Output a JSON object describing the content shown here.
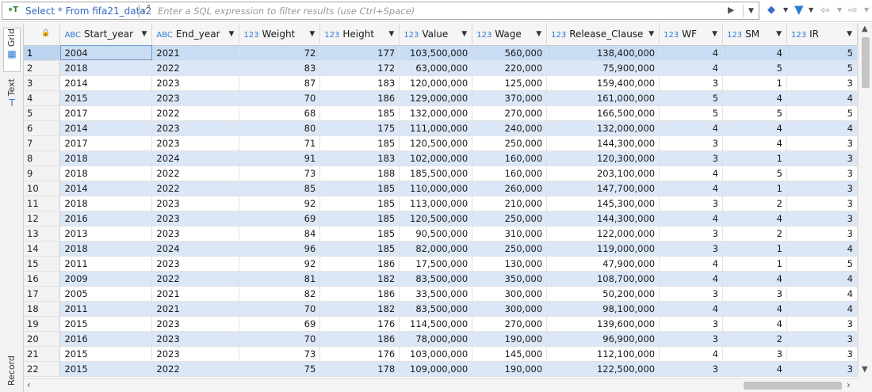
{
  "filter": {
    "query_icon": "⋄T",
    "query_label": "Select * From fifa21_data2",
    "placeholder": "Enter a SQL expression to filter results (use Ctrl+Space)"
  },
  "icons": {
    "expand": "expand-icon",
    "play": "play-icon",
    "eraser": "eraser-icon",
    "filter": "filter-icon",
    "back": "arrow-left-icon",
    "forward": "arrow-right-icon",
    "lock": "lock-icon"
  },
  "side_tabs": {
    "grid": "Grid",
    "text": "Text",
    "record": "Record"
  },
  "columns": [
    {
      "type": "ABC",
      "name": "Start_year",
      "width": 116
    },
    {
      "type": "ABC",
      "name": "End_year",
      "width": 110
    },
    {
      "type": "123",
      "name": "Weight",
      "width": 102
    },
    {
      "type": "123",
      "name": "Height",
      "width": 100
    },
    {
      "type": "123",
      "name": "Value",
      "width": 92
    },
    {
      "type": "123",
      "name": "Wage",
      "width": 94
    },
    {
      "type": "123",
      "name": "Release_Clause",
      "width": 142
    },
    {
      "type": "123",
      "name": "WF",
      "width": 80
    },
    {
      "type": "123",
      "name": "SM",
      "width": 81
    },
    {
      "type": "123",
      "name": "IR",
      "width": 89
    }
  ],
  "rows": [
    [
      "1",
      "2004",
      "2021",
      "72",
      "177",
      "103,500,000",
      "560,000",
      "138,400,000",
      "4",
      "4",
      "5"
    ],
    [
      "2",
      "2018",
      "2022",
      "83",
      "172",
      "63,000,000",
      "220,000",
      "75,900,000",
      "4",
      "5",
      "5"
    ],
    [
      "3",
      "2014",
      "2023",
      "87",
      "183",
      "120,000,000",
      "125,000",
      "159,400,000",
      "3",
      "1",
      "3"
    ],
    [
      "4",
      "2015",
      "2023",
      "70",
      "186",
      "129,000,000",
      "370,000",
      "161,000,000",
      "5",
      "4",
      "4"
    ],
    [
      "5",
      "2017",
      "2022",
      "68",
      "185",
      "132,000,000",
      "270,000",
      "166,500,000",
      "5",
      "5",
      "5"
    ],
    [
      "6",
      "2014",
      "2023",
      "80",
      "175",
      "111,000,000",
      "240,000",
      "132,000,000",
      "4",
      "4",
      "4"
    ],
    [
      "7",
      "2017",
      "2023",
      "71",
      "185",
      "120,500,000",
      "250,000",
      "144,300,000",
      "3",
      "4",
      "3"
    ],
    [
      "8",
      "2018",
      "2024",
      "91",
      "183",
      "102,000,000",
      "160,000",
      "120,300,000",
      "3",
      "1",
      "3"
    ],
    [
      "9",
      "2018",
      "2022",
      "73",
      "188",
      "185,500,000",
      "160,000",
      "203,100,000",
      "4",
      "5",
      "3"
    ],
    [
      "10",
      "2014",
      "2022",
      "85",
      "185",
      "110,000,000",
      "260,000",
      "147,700,000",
      "4",
      "1",
      "3"
    ],
    [
      "11",
      "2018",
      "2023",
      "92",
      "185",
      "113,000,000",
      "210,000",
      "145,300,000",
      "3",
      "2",
      "3"
    ],
    [
      "12",
      "2016",
      "2023",
      "69",
      "185",
      "120,500,000",
      "250,000",
      "144,300,000",
      "4",
      "4",
      "3"
    ],
    [
      "13",
      "2013",
      "2023",
      "84",
      "185",
      "90,500,000",
      "310,000",
      "122,000,000",
      "3",
      "2",
      "3"
    ],
    [
      "14",
      "2018",
      "2024",
      "96",
      "185",
      "82,000,000",
      "250,000",
      "119,000,000",
      "3",
      "1",
      "4"
    ],
    [
      "15",
      "2011",
      "2023",
      "92",
      "186",
      "17,500,000",
      "130,000",
      "47,900,000",
      "4",
      "1",
      "5"
    ],
    [
      "16",
      "2009",
      "2022",
      "81",
      "182",
      "83,500,000",
      "350,000",
      "108,700,000",
      "4",
      "4",
      "4"
    ],
    [
      "17",
      "2005",
      "2021",
      "82",
      "186",
      "33,500,000",
      "300,000",
      "50,200,000",
      "3",
      "3",
      "4"
    ],
    [
      "18",
      "2011",
      "2021",
      "70",
      "182",
      "83,500,000",
      "300,000",
      "98,100,000",
      "4",
      "4",
      "4"
    ],
    [
      "19",
      "2015",
      "2023",
      "69",
      "176",
      "114,500,000",
      "270,000",
      "139,600,000",
      "3",
      "4",
      "3"
    ],
    [
      "20",
      "2016",
      "2023",
      "70",
      "186",
      "78,000,000",
      "190,000",
      "96,900,000",
      "3",
      "2",
      "3"
    ],
    [
      "21",
      "2015",
      "2023",
      "73",
      "176",
      "103,000,000",
      "145,000",
      "112,100,000",
      "4",
      "3",
      "3"
    ],
    [
      "22",
      "2015",
      "2022",
      "75",
      "178",
      "109,000,000",
      "190,000",
      "122,500,000",
      "3",
      "4",
      "3"
    ]
  ],
  "selected_row": 0
}
